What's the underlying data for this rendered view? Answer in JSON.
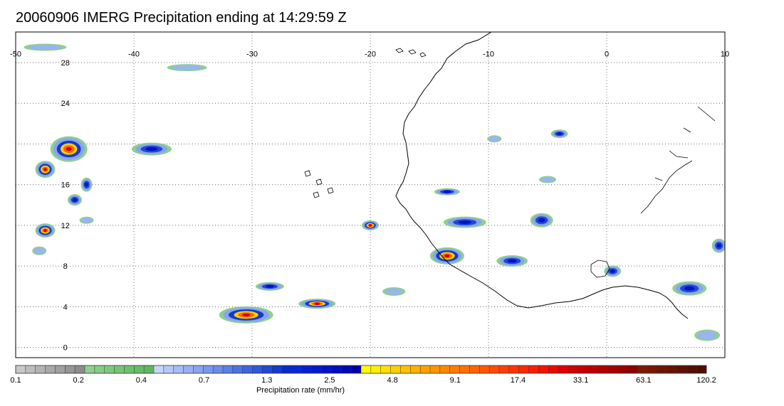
{
  "title": "20060906 IMERG Precipitation ending at 14:29:59 Z",
  "map": {
    "lon_range": [
      -50,
      10
    ],
    "lat_range": [
      -1,
      31
    ],
    "lon_ticks": [
      "-50",
      "-40",
      "-30",
      "-20",
      "-10",
      "0",
      "10"
    ],
    "lat_ticks": [
      "28",
      "24",
      "20",
      "16",
      "12",
      "8",
      "4",
      "0"
    ],
    "grid": "dotted"
  },
  "colorbar": {
    "label": "Precipitation rate (mm/hr)",
    "tick_labels": [
      "0.1",
      "0.2",
      "0.4",
      "0.7",
      "1.3",
      "2.5",
      "4.8",
      "9.1",
      "17.4",
      "33.1",
      "63.1",
      "120.2"
    ],
    "colors": [
      "#c8c8c8",
      "#bdbdbd",
      "#b3b3b3",
      "#a9a9a9",
      "#a0a0a0",
      "#969696",
      "#8c8c8c",
      "#8ed08e",
      "#86cc86",
      "#7ec87e",
      "#76c476",
      "#6ec06e",
      "#66bc66",
      "#5eb85e",
      "#c8d4f8",
      "#b8c8f6",
      "#a8bcf4",
      "#98b0f2",
      "#88a4f0",
      "#7898ee",
      "#688ce8",
      "#5a80e6",
      "#4c72e2",
      "#3e64de",
      "#3056da",
      "#2248d4",
      "#143ace",
      "#062cc8",
      "#0826d8",
      "#0620d0",
      "#041ac8",
      "#0214c0",
      "#000eb8",
      "#0008b0",
      "#0000a8",
      "#ffff00",
      "#fff000",
      "#ffe000",
      "#ffd000",
      "#ffc000",
      "#ffb000",
      "#ffa000",
      "#ff9400",
      "#ff8800",
      "#ff7c00",
      "#ff7000",
      "#ff6400",
      "#ff5800",
      "#ff4c00",
      "#ff4000",
      "#ff3400",
      "#ff2800",
      "#ff1c00",
      "#f81000",
      "#ee0800",
      "#e40000",
      "#d40000",
      "#c80000",
      "#bc0000",
      "#b00000",
      "#a40000",
      "#980000",
      "#8c0000",
      "#801800",
      "#781600",
      "#701400",
      "#681200",
      "#601000",
      "#580e00",
      "#500c00"
    ]
  },
  "precip_cells": [
    {
      "lon": -45.5,
      "lat": 19.5,
      "rx": 26,
      "ry": 18,
      "level": "heavy"
    },
    {
      "lon": -47.5,
      "lat": 17.5,
      "rx": 14,
      "ry": 12,
      "level": "heavy"
    },
    {
      "lon": -45.0,
      "lat": 14.5,
      "rx": 10,
      "ry": 8,
      "level": "moderate"
    },
    {
      "lon": -47.5,
      "lat": 11.5,
      "rx": 14,
      "ry": 10,
      "level": "heavy"
    },
    {
      "lon": -44.0,
      "lat": 16.0,
      "rx": 8,
      "ry": 10,
      "level": "moderate"
    },
    {
      "lon": -48.0,
      "lat": 9.5,
      "rx": 10,
      "ry": 6,
      "level": "light"
    },
    {
      "lon": -38.5,
      "lat": 19.5,
      "rx": 28,
      "ry": 9,
      "level": "moderate"
    },
    {
      "lon": -35.5,
      "lat": 27.5,
      "rx": 28,
      "ry": 5,
      "level": "light"
    },
    {
      "lon": -47.5,
      "lat": 29.5,
      "rx": 30,
      "ry": 5,
      "level": "light"
    },
    {
      "lon": -30.5,
      "lat": 3.2,
      "rx": 38,
      "ry": 12,
      "level": "heavy"
    },
    {
      "lon": -24.5,
      "lat": 4.3,
      "rx": 26,
      "ry": 7,
      "level": "heavy"
    },
    {
      "lon": -28.5,
      "lat": 6.0,
      "rx": 20,
      "ry": 6,
      "level": "moderate"
    },
    {
      "lon": -20.0,
      "lat": 12.0,
      "rx": 12,
      "ry": 7,
      "level": "heavy"
    },
    {
      "lon": -18.0,
      "lat": 5.5,
      "rx": 16,
      "ry": 6,
      "level": "light"
    },
    {
      "lon": -12.0,
      "lat": 12.3,
      "rx": 30,
      "ry": 8,
      "level": "moderate"
    },
    {
      "lon": -13.5,
      "lat": 9.0,
      "rx": 24,
      "ry": 12,
      "level": "heavy"
    },
    {
      "lon": -8.0,
      "lat": 8.5,
      "rx": 22,
      "ry": 8,
      "level": "moderate"
    },
    {
      "lon": -5.5,
      "lat": 12.5,
      "rx": 16,
      "ry": 10,
      "level": "moderate"
    },
    {
      "lon": -13.5,
      "lat": 15.3,
      "rx": 18,
      "ry": 5,
      "level": "moderate"
    },
    {
      "lon": -4.0,
      "lat": 21.0,
      "rx": 12,
      "ry": 6,
      "level": "moderate"
    },
    {
      "lon": -9.5,
      "lat": 20.5,
      "rx": 10,
      "ry": 5,
      "level": "light"
    },
    {
      "lon": 0.5,
      "lat": 7.5,
      "rx": 12,
      "ry": 8,
      "level": "moderate"
    },
    {
      "lon": 7.0,
      "lat": 5.8,
      "rx": 24,
      "ry": 10,
      "level": "moderate"
    },
    {
      "lon": 8.5,
      "lat": 1.2,
      "rx": 18,
      "ry": 8,
      "level": "light"
    },
    {
      "lon": 9.5,
      "lat": 10.0,
      "rx": 10,
      "ry": 10,
      "level": "moderate"
    },
    {
      "lon": -5.0,
      "lat": 16.5,
      "rx": 12,
      "ry": 5,
      "level": "light"
    },
    {
      "lon": -44.0,
      "lat": 12.5,
      "rx": 10,
      "ry": 5,
      "level": "light"
    }
  ]
}
